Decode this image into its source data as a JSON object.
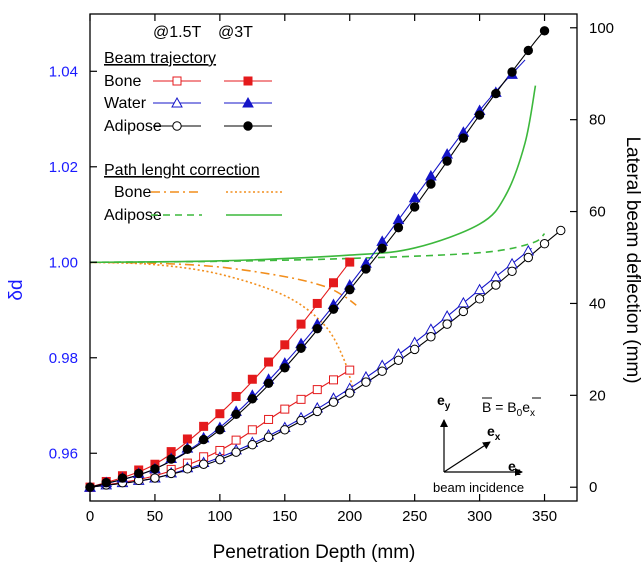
{
  "chart_data": {
    "type": "line",
    "xlabel": "Penetration Depth (mm)",
    "ylabel_left": "δd",
    "ylabel_right": "Lateral beam deflection (mm)",
    "xlim": [
      0,
      375
    ],
    "ylim_left": [
      0.95,
      1.052
    ],
    "ylim_right": [
      -3,
      103
    ],
    "x_ticks": [
      0,
      50,
      100,
      150,
      200,
      250,
      300,
      350
    ],
    "y_left_ticks": [
      0.96,
      0.98,
      1.0,
      1.02,
      1.04
    ],
    "y_left_tick_labels": [
      "0.96",
      "0.98",
      "1.00",
      "1.02",
      "1.04"
    ],
    "y_right_ticks": [
      0,
      20,
      40,
      60,
      80,
      100
    ],
    "legend": {
      "col_headers": [
        "@1.5T",
        "@3T"
      ],
      "group1_title": "Beam trajectory",
      "group1_rows": [
        "Bone",
        "Water",
        "Adipose"
      ],
      "group2_title": "Path lenght correction",
      "group2_rows": [
        "Bone",
        "Adipose"
      ]
    },
    "colors": {
      "bone_traj": "#e41a1c",
      "water_traj": "#1515c8",
      "adipose_traj": "#000000",
      "bone_corr": "#f28e1c",
      "adipose_corr": "#3cb83c",
      "left_axis_text": "#1a1aff"
    },
    "series": [
      {
        "name": "Bone",
        "field": "1.5T",
        "axis": "right",
        "marker": "square-open",
        "x": [
          0,
          50,
          100,
          150,
          203
        ],
        "y": [
          0,
          2.5,
          8,
          17,
          26
        ]
      },
      {
        "name": "Bone",
        "field": "3T",
        "axis": "right",
        "marker": "square-filled",
        "x": [
          0,
          50,
          100,
          150,
          200
        ],
        "y": [
          0,
          5,
          16,
          31,
          49
        ]
      },
      {
        "name": "Water",
        "field": "1.5T",
        "axis": "right",
        "marker": "triangle-open",
        "x": [
          0,
          50,
          100,
          150,
          200,
          250,
          300,
          340
        ],
        "y": [
          0,
          2,
          6.5,
          13,
          21.5,
          31.5,
          43,
          52
        ]
      },
      {
        "name": "Water",
        "field": "3T",
        "axis": "right",
        "marker": "triangle-filled",
        "x": [
          0,
          50,
          100,
          150,
          200,
          250,
          300,
          335
        ],
        "y": [
          0,
          4,
          13,
          27,
          44,
          63,
          82,
          93
        ]
      },
      {
        "name": "Adipose",
        "field": "1.5T",
        "axis": "right",
        "marker": "circle-open",
        "x": [
          0,
          50,
          100,
          150,
          200,
          250,
          300,
          350,
          363
        ],
        "y": [
          0,
          2,
          6,
          12.5,
          20.5,
          30,
          41,
          53,
          56
        ]
      },
      {
        "name": "Adipose",
        "field": "3T",
        "axis": "right",
        "marker": "circle-filled",
        "x": [
          0,
          50,
          100,
          150,
          200,
          250,
          300,
          340,
          352
        ],
        "y": [
          0,
          4,
          12.5,
          26,
          43,
          61,
          81,
          96,
          100
        ]
      },
      {
        "name": "Bone",
        "field": "1.5T",
        "axis": "left",
        "style": "dashdot",
        "x": [
          0,
          50,
          100,
          150,
          180,
          195,
          205
        ],
        "y": [
          1.0,
          0.9998,
          0.999,
          0.997,
          0.995,
          0.993,
          0.991
        ]
      },
      {
        "name": "Bone",
        "field": "3T",
        "axis": "left",
        "style": "dotted",
        "x": [
          0,
          50,
          100,
          150,
          180,
          195,
          203
        ],
        "y": [
          1.0,
          0.9995,
          0.9975,
          0.993,
          0.987,
          0.98,
          0.973
        ]
      },
      {
        "name": "Adipose",
        "field": "1.5T",
        "axis": "left",
        "style": "dashed",
        "x": [
          0,
          100,
          200,
          300,
          340,
          350
        ],
        "y": [
          1.0,
          1.0002,
          1.0008,
          1.002,
          1.004,
          1.006
        ]
      },
      {
        "name": "Adipose",
        "field": "3T",
        "axis": "left",
        "style": "solid",
        "x": [
          0,
          100,
          200,
          250,
          300,
          320,
          335,
          343
        ],
        "y": [
          1.0,
          1.0003,
          1.0015,
          1.003,
          1.008,
          1.014,
          1.025,
          1.037
        ]
      }
    ],
    "annotations": {
      "field_eq": "B = B",
      "field_eq_sub": "0",
      "field_eq_vec": "e",
      "field_eq_vec_sub": "x",
      "ey": "e",
      "ey_sub": "y",
      "ex": "e",
      "ex_sub": "x",
      "ez": "e",
      "ez_sub": "z",
      "beam_incidence": "beam incidence"
    }
  }
}
